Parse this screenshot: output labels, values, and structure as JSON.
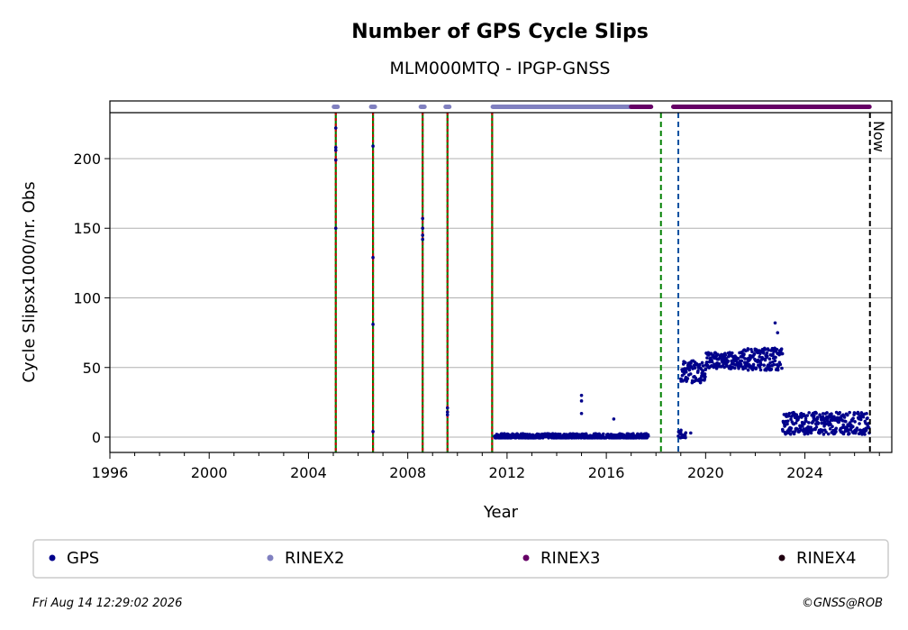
{
  "chart_data": {
    "type": "scatter",
    "title": "Number of GPS Cycle Slips",
    "subtitle": "MLM000MTQ - IPGP-GNSS",
    "xlabel": "Year",
    "ylabel": "Cycle Slipsx1000/nr. Obs",
    "xlim": [
      1996,
      2027.5
    ],
    "ylim": [
      -11,
      233
    ],
    "xticks": [
      1996,
      2000,
      2004,
      2008,
      2012,
      2016,
      2020,
      2024
    ],
    "yticks": [
      0,
      50,
      100,
      150,
      200
    ],
    "grid": "horizontal",
    "legend_position": "bottom",
    "now_label": "Now",
    "now_year": 2026.62,
    "footer_left": "Fri Aug 14 12:29:02 2026",
    "footer_right": "©GNSS@ROB",
    "colors": {
      "gps": "#00008b",
      "rinex2": "#8080c0",
      "rinex3": "#660066",
      "rinex4": "#200010",
      "event_green": "#008000",
      "event_red": "#cc0000",
      "event_blue": "#0050a0"
    },
    "legend": [
      "GPS",
      "RINEX2",
      "RINEX3",
      "RINEX4"
    ],
    "event_lines": [
      {
        "year": 2005.1,
        "style": "green-red"
      },
      {
        "year": 2006.6,
        "style": "green-red"
      },
      {
        "year": 2008.6,
        "style": "green-red"
      },
      {
        "year": 2009.6,
        "style": "green-red"
      },
      {
        "year": 2011.4,
        "style": "green-red"
      },
      {
        "year": 2018.2,
        "style": "green"
      },
      {
        "year": 2018.9,
        "style": "blue"
      }
    ],
    "series": [
      {
        "name": "GPS",
        "x": [
          2005.1,
          2005.1,
          2005.1,
          2005.1,
          2005.1,
          2006.6,
          2006.6,
          2006.6,
          2006.6,
          2008.6,
          2008.6,
          2008.6,
          2008.6,
          2009.6,
          2009.6,
          2009.6
        ],
        "y": [
          222,
          208,
          206,
          199,
          150,
          209,
          129,
          81,
          4,
          157,
          150,
          145,
          142,
          21,
          18,
          16
        ]
      },
      {
        "name": "GPS_segments",
        "segments": [
          {
            "x0": 2011.5,
            "x1": 2017.7,
            "base": 0.5,
            "amp": 2
          },
          {
            "x0": 2018.9,
            "x1": 2019.2,
            "base": 2,
            "amp": 3
          },
          {
            "x0": 2019.0,
            "x1": 2020.0,
            "base": 47,
            "amp": 8
          },
          {
            "x0": 2020.0,
            "x1": 2021.5,
            "base": 55,
            "amp": 6
          },
          {
            "x0": 2021.5,
            "x1": 2023.1,
            "base": 56,
            "amp": 8
          },
          {
            "x0": 2023.1,
            "x1": 2026.6,
            "base": 10,
            "amp": 8
          }
        ]
      },
      {
        "name": "GPS_outliers",
        "x": [
          2015.0,
          2015.0,
          2015.0,
          2016.3,
          2019.4,
          2022.8,
          2022.9
        ],
        "y": [
          30,
          26,
          17,
          13,
          3,
          82,
          75
        ]
      },
      {
        "name": "RINEX2",
        "ranges": [
          [
            2005.1,
            2005.1
          ],
          [
            2006.6,
            2006.6
          ],
          [
            2008.6,
            2008.6
          ],
          [
            2009.6,
            2009.6
          ],
          [
            2011.5,
            2017.0
          ]
        ]
      },
      {
        "name": "RINEX3",
        "ranges": [
          [
            2017.0,
            2017.8
          ],
          [
            2018.7,
            2026.6
          ]
        ]
      }
    ]
  }
}
